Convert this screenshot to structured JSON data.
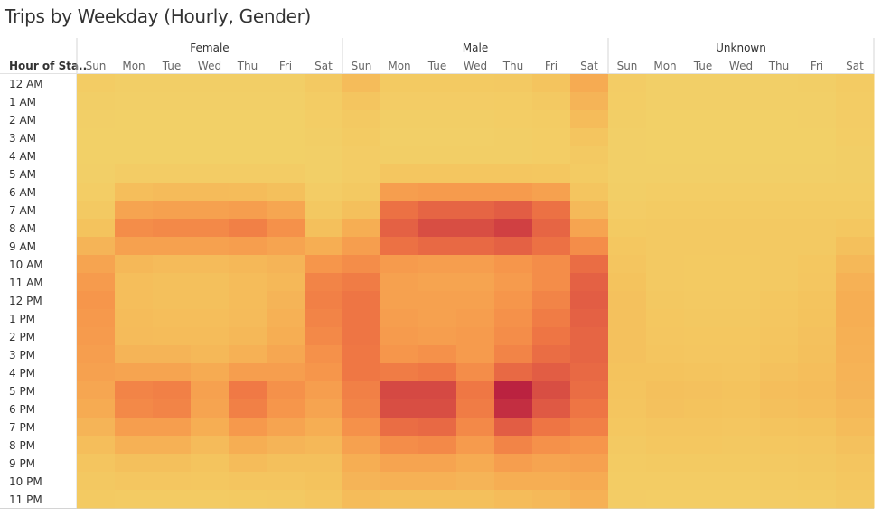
{
  "title": "Trips by Weekday (Hourly, Gender)",
  "chart_data": {
    "type": "heatmap",
    "title": "Trips by Weekday (Hourly, Gender)",
    "row_header": "Hour of Sta..",
    "groups": [
      "Female",
      "Male",
      "Unknown"
    ],
    "days": [
      "Sun",
      "Mon",
      "Tue",
      "Wed",
      "Thu",
      "Fri",
      "Sat"
    ],
    "hours": [
      "12 AM",
      "1 AM",
      "2 AM",
      "3 AM",
      "4 AM",
      "5 AM",
      "6 AM",
      "7 AM",
      "8 AM",
      "9 AM",
      "10 AM",
      "11 AM",
      "12 PM",
      "1 PM",
      "2 PM",
      "3 PM",
      "4 PM",
      "5 PM",
      "6 PM",
      "7 PM",
      "8 PM",
      "9 PM",
      "10 PM",
      "11 PM"
    ],
    "value_scale": "relative intensity 0-1",
    "color_scale": [
      "#f2d168",
      "#f4c45e",
      "#f6ad53",
      "#f6964b",
      "#ef7744",
      "#e05a44",
      "#cc3a42",
      "#b81e40"
    ],
    "values": {
      "Female": [
        [
          0.06,
          0.03,
          0.03,
          0.03,
          0.03,
          0.03,
          0.09
        ],
        [
          0.03,
          0.02,
          0.02,
          0.02,
          0.02,
          0.02,
          0.06
        ],
        [
          0.02,
          0.01,
          0.01,
          0.01,
          0.01,
          0.01,
          0.04
        ],
        [
          0.01,
          0.01,
          0.01,
          0.01,
          0.01,
          0.01,
          0.03
        ],
        [
          0.01,
          0.01,
          0.01,
          0.01,
          0.01,
          0.01,
          0.02
        ],
        [
          0.02,
          0.05,
          0.05,
          0.05,
          0.05,
          0.05,
          0.02
        ],
        [
          0.04,
          0.18,
          0.2,
          0.2,
          0.19,
          0.17,
          0.05
        ],
        [
          0.09,
          0.34,
          0.36,
          0.36,
          0.38,
          0.33,
          0.1
        ],
        [
          0.15,
          0.47,
          0.49,
          0.49,
          0.53,
          0.45,
          0.17
        ],
        [
          0.24,
          0.36,
          0.36,
          0.36,
          0.38,
          0.34,
          0.28
        ],
        [
          0.34,
          0.22,
          0.2,
          0.2,
          0.22,
          0.24,
          0.43
        ],
        [
          0.4,
          0.18,
          0.17,
          0.17,
          0.19,
          0.22,
          0.51
        ],
        [
          0.43,
          0.18,
          0.17,
          0.17,
          0.19,
          0.24,
          0.53
        ],
        [
          0.41,
          0.19,
          0.18,
          0.18,
          0.2,
          0.26,
          0.51
        ],
        [
          0.4,
          0.2,
          0.19,
          0.19,
          0.22,
          0.28,
          0.49
        ],
        [
          0.38,
          0.24,
          0.24,
          0.22,
          0.26,
          0.32,
          0.45
        ],
        [
          0.36,
          0.34,
          0.34,
          0.3,
          0.38,
          0.38,
          0.43
        ],
        [
          0.33,
          0.51,
          0.53,
          0.36,
          0.56,
          0.45,
          0.38
        ],
        [
          0.3,
          0.49,
          0.51,
          0.34,
          0.53,
          0.43,
          0.34
        ],
        [
          0.24,
          0.38,
          0.38,
          0.28,
          0.41,
          0.34,
          0.28
        ],
        [
          0.18,
          0.26,
          0.26,
          0.2,
          0.28,
          0.24,
          0.22
        ],
        [
          0.13,
          0.17,
          0.17,
          0.14,
          0.19,
          0.17,
          0.17
        ],
        [
          0.1,
          0.12,
          0.12,
          0.11,
          0.13,
          0.13,
          0.15
        ],
        [
          0.08,
          0.07,
          0.07,
          0.07,
          0.08,
          0.09,
          0.12
        ]
      ],
      "Male": [
        [
          0.19,
          0.08,
          0.08,
          0.08,
          0.09,
          0.14,
          0.3
        ],
        [
          0.13,
          0.05,
          0.05,
          0.05,
          0.06,
          0.09,
          0.24
        ],
        [
          0.09,
          0.03,
          0.03,
          0.03,
          0.04,
          0.06,
          0.19
        ],
        [
          0.07,
          0.02,
          0.02,
          0.02,
          0.03,
          0.04,
          0.13
        ],
        [
          0.05,
          0.03,
          0.03,
          0.03,
          0.03,
          0.04,
          0.09
        ],
        [
          0.05,
          0.12,
          0.12,
          0.12,
          0.12,
          0.11,
          0.07
        ],
        [
          0.09,
          0.38,
          0.4,
          0.4,
          0.4,
          0.36,
          0.13
        ],
        [
          0.17,
          0.6,
          0.66,
          0.66,
          0.7,
          0.6,
          0.21
        ],
        [
          0.28,
          0.68,
          0.77,
          0.77,
          0.83,
          0.66,
          0.34
        ],
        [
          0.38,
          0.6,
          0.64,
          0.64,
          0.68,
          0.6,
          0.47
        ],
        [
          0.47,
          0.4,
          0.38,
          0.38,
          0.43,
          0.47,
          0.62
        ],
        [
          0.55,
          0.36,
          0.34,
          0.34,
          0.4,
          0.47,
          0.68
        ],
        [
          0.58,
          0.36,
          0.36,
          0.36,
          0.43,
          0.51,
          0.7
        ],
        [
          0.58,
          0.38,
          0.36,
          0.38,
          0.45,
          0.55,
          0.68
        ],
        [
          0.58,
          0.4,
          0.38,
          0.4,
          0.47,
          0.58,
          0.66
        ],
        [
          0.57,
          0.43,
          0.45,
          0.4,
          0.51,
          0.62,
          0.66
        ],
        [
          0.57,
          0.55,
          0.57,
          0.47,
          0.64,
          0.7,
          0.64
        ],
        [
          0.53,
          0.79,
          0.79,
          0.57,
          0.98,
          0.77,
          0.62
        ],
        [
          0.51,
          0.77,
          0.77,
          0.55,
          0.92,
          0.72,
          0.58
        ],
        [
          0.45,
          0.62,
          0.64,
          0.49,
          0.7,
          0.58,
          0.53
        ],
        [
          0.36,
          0.47,
          0.49,
          0.4,
          0.51,
          0.45,
          0.43
        ],
        [
          0.28,
          0.34,
          0.34,
          0.3,
          0.38,
          0.34,
          0.36
        ],
        [
          0.24,
          0.26,
          0.26,
          0.24,
          0.28,
          0.28,
          0.3
        ],
        [
          0.19,
          0.17,
          0.17,
          0.17,
          0.19,
          0.21,
          0.26
        ]
      ],
      "Unknown": [
        [
          0.05,
          0.02,
          0.02,
          0.02,
          0.02,
          0.03,
          0.07
        ],
        [
          0.04,
          0.02,
          0.02,
          0.02,
          0.02,
          0.02,
          0.06
        ],
        [
          0.03,
          0.01,
          0.01,
          0.01,
          0.01,
          0.02,
          0.05
        ],
        [
          0.02,
          0.01,
          0.01,
          0.01,
          0.01,
          0.01,
          0.04
        ],
        [
          0.02,
          0.01,
          0.01,
          0.01,
          0.01,
          0.01,
          0.03
        ],
        [
          0.02,
          0.02,
          0.02,
          0.02,
          0.02,
          0.02,
          0.03
        ],
        [
          0.03,
          0.04,
          0.04,
          0.04,
          0.04,
          0.04,
          0.04
        ],
        [
          0.05,
          0.07,
          0.07,
          0.07,
          0.07,
          0.07,
          0.07
        ],
        [
          0.08,
          0.09,
          0.09,
          0.09,
          0.09,
          0.09,
          0.11
        ],
        [
          0.11,
          0.09,
          0.09,
          0.09,
          0.09,
          0.09,
          0.17
        ],
        [
          0.13,
          0.09,
          0.08,
          0.08,
          0.09,
          0.11,
          0.22
        ],
        [
          0.15,
          0.09,
          0.08,
          0.08,
          0.09,
          0.12,
          0.26
        ],
        [
          0.16,
          0.1,
          0.09,
          0.09,
          0.11,
          0.14,
          0.28
        ],
        [
          0.16,
          0.11,
          0.1,
          0.1,
          0.12,
          0.15,
          0.28
        ],
        [
          0.16,
          0.12,
          0.11,
          0.11,
          0.13,
          0.16,
          0.27
        ],
        [
          0.16,
          0.13,
          0.12,
          0.12,
          0.14,
          0.17,
          0.26
        ],
        [
          0.15,
          0.15,
          0.14,
          0.13,
          0.16,
          0.18,
          0.25
        ],
        [
          0.14,
          0.17,
          0.16,
          0.15,
          0.18,
          0.19,
          0.24
        ],
        [
          0.13,
          0.16,
          0.15,
          0.14,
          0.17,
          0.18,
          0.22
        ],
        [
          0.11,
          0.13,
          0.13,
          0.12,
          0.14,
          0.15,
          0.19
        ],
        [
          0.09,
          0.11,
          0.11,
          0.1,
          0.11,
          0.12,
          0.16
        ],
        [
          0.07,
          0.08,
          0.08,
          0.08,
          0.09,
          0.1,
          0.13
        ],
        [
          0.06,
          0.06,
          0.06,
          0.06,
          0.07,
          0.08,
          0.11
        ],
        [
          0.05,
          0.04,
          0.04,
          0.04,
          0.05,
          0.06,
          0.09
        ]
      ]
    }
  }
}
